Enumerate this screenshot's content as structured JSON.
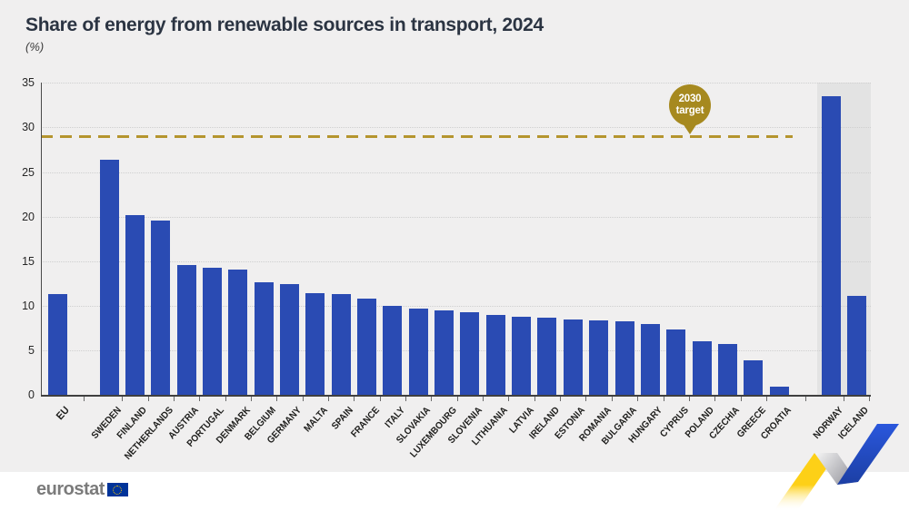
{
  "title": "Share of energy from renewable sources in transport, 2024",
  "subtitle": "(%)",
  "target_badge": {
    "line1": "2030",
    "line2": "target"
  },
  "footer": {
    "logo_text": "eurostat"
  },
  "colors": {
    "bar": "#2a4bb3",
    "target_line": "#b5952e",
    "badge": "#a6891f",
    "background": "#f0efef",
    "efta_shade": "#e3e3e3",
    "eu_flag_blue": "#003399",
    "eu_flag_stars": "#ffcc00",
    "ribbon_yellow": "#fdd017",
    "ribbon_blue": "#2a57dc",
    "ribbon_gray": "#8e8e96"
  },
  "chart_data": {
    "type": "bar",
    "title": "Share of energy from renewable sources in transport, 2024",
    "unit": "%",
    "ylabel": "(%)",
    "xlabel": "",
    "ylim": [
      0,
      35
    ],
    "y_ticks": [
      0,
      5,
      10,
      15,
      20,
      25,
      30,
      35
    ],
    "grid": "horizontal-dotted",
    "legend": "none",
    "target_line": {
      "value": 29,
      "label": "2030 target"
    },
    "categories": [
      "EU",
      "Sweden",
      "Finland",
      "Netherlands",
      "Austria",
      "Portugal",
      "Denmark",
      "Belgium",
      "Germany",
      "Malta",
      "Spain",
      "France",
      "Italy",
      "Slovakia",
      "Luxembourg",
      "Slovenia",
      "Lithuania",
      "Latvia",
      "Ireland",
      "Estonia",
      "Romania",
      "Bulgaria",
      "Hungary",
      "Cyprus",
      "Poland",
      "Czechia",
      "Greece",
      "Croatia",
      "Norway",
      "Iceland"
    ],
    "values": [
      11.3,
      26.4,
      20.2,
      19.6,
      14.6,
      14.3,
      14.1,
      12.6,
      12.4,
      11.4,
      11.3,
      10.8,
      10.0,
      9.7,
      9.5,
      9.3,
      9.0,
      8.8,
      8.7,
      8.5,
      8.4,
      8.2,
      7.9,
      7.3,
      6.0,
      5.7,
      3.9,
      0.9,
      33.5,
      11.1
    ],
    "groups": [
      "eu",
      "member",
      "member",
      "member",
      "member",
      "member",
      "member",
      "member",
      "member",
      "member",
      "member",
      "member",
      "member",
      "member",
      "member",
      "member",
      "member",
      "member",
      "member",
      "member",
      "member",
      "member",
      "member",
      "member",
      "member",
      "member",
      "member",
      "member",
      "efta",
      "efta"
    ]
  }
}
